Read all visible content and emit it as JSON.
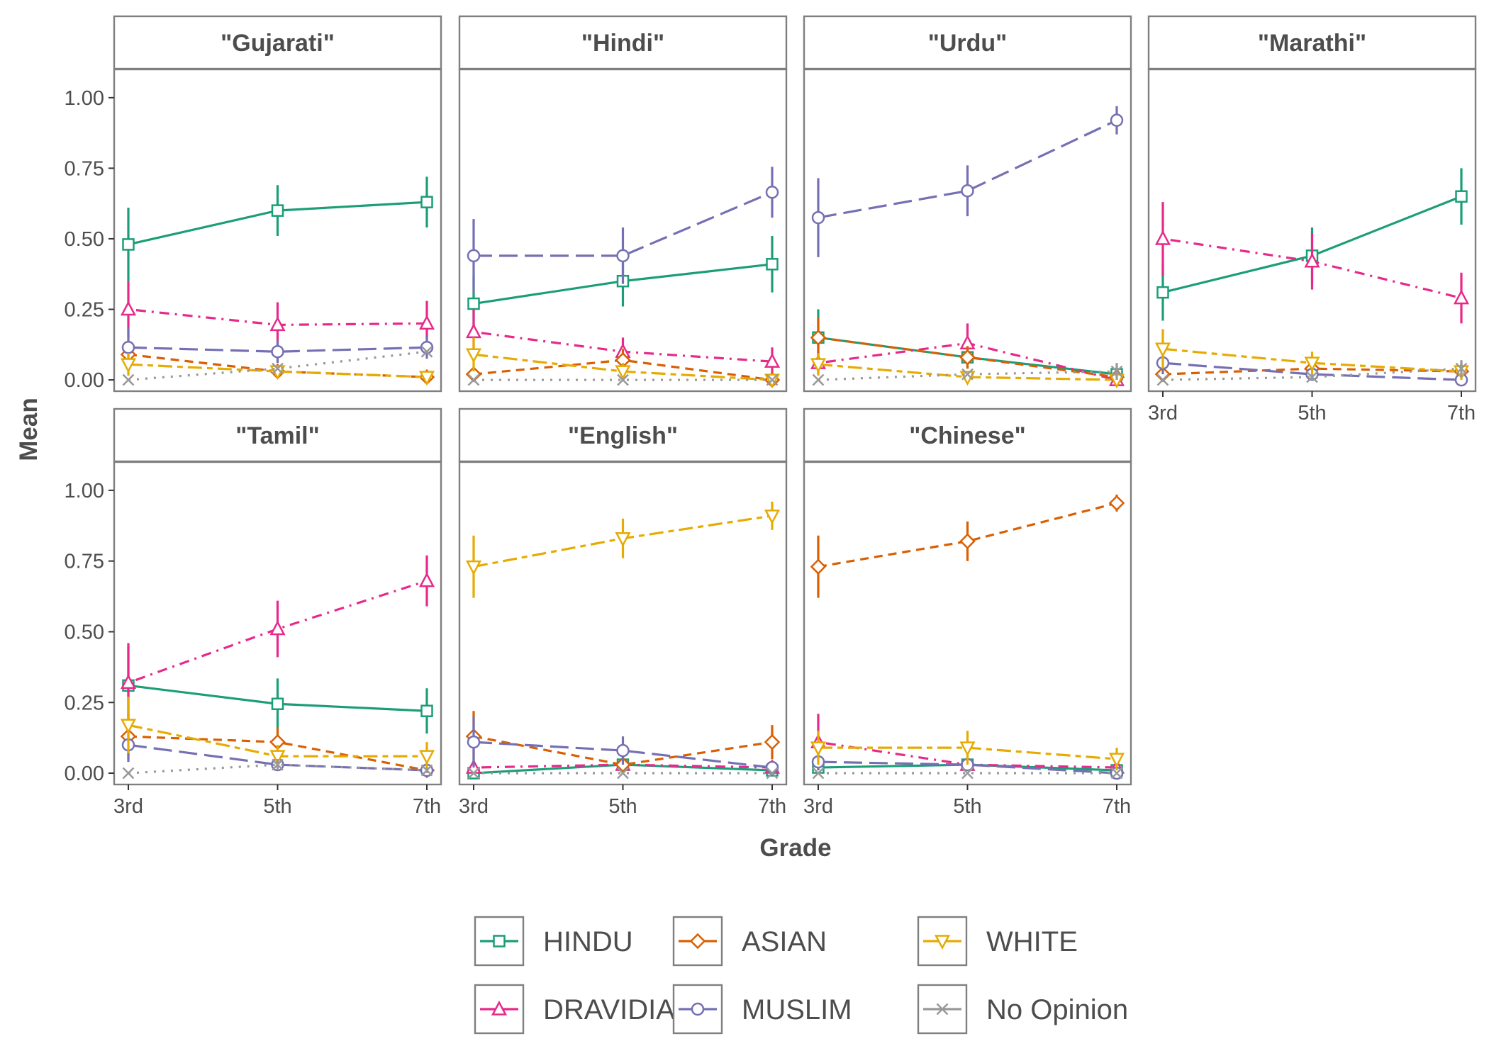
{
  "chart_data": {
    "type": "line",
    "xlabel": "Grade",
    "ylabel": "Mean",
    "x": [
      "3rd",
      "5th",
      "7th"
    ],
    "y_ticks": [
      "0.00",
      "0.25",
      "0.50",
      "0.75",
      "1.00"
    ],
    "ylim": [
      -0.04,
      1.1
    ],
    "grid": false,
    "legend_position": "bottom",
    "series_order": [
      "HINDU",
      "DRAVIDIAN",
      "ASIAN",
      "MUSLIM",
      "WHITE",
      "No Opinion"
    ],
    "series_styles": {
      "HINDU": {
        "color": "#1B9E77",
        "marker": "square",
        "dash": "solid"
      },
      "DRAVIDIAN": {
        "color": "#E7298A",
        "marker": "triangle-up",
        "dash": "dotdash"
      },
      "ASIAN": {
        "color": "#D95F02",
        "marker": "diamond",
        "dash": "dashed"
      },
      "MUSLIM": {
        "color": "#7570B3",
        "marker": "circle",
        "dash": "longdash"
      },
      "WHITE": {
        "color": "#E6AB02",
        "marker": "triangle-down",
        "dash": "twodash"
      },
      "No Opinion": {
        "color": "#999999",
        "marker": "x",
        "dash": "dotted"
      }
    },
    "panels": [
      {
        "title": "\"Gujarati\"",
        "series": [
          {
            "name": "HINDU",
            "values": [
              0.48,
              0.6,
              0.63
            ],
            "err": [
              0.13,
              0.09,
              0.09
            ]
          },
          {
            "name": "DRAVIDIAN",
            "values": [
              0.25,
              0.195,
              0.2
            ],
            "err": [
              0.1,
              0.08,
              0.08
            ]
          },
          {
            "name": "ASIAN",
            "values": [
              0.09,
              0.03,
              0.01
            ],
            "err": [
              0.05,
              0.02,
              0.01
            ]
          },
          {
            "name": "MUSLIM",
            "values": [
              0.115,
              0.1,
              0.115
            ],
            "err": [
              0.07,
              0.04,
              0.04
            ]
          },
          {
            "name": "WHITE",
            "values": [
              0.055,
              0.03,
              0.01
            ],
            "err": [
              0.04,
              0.02,
              0.01
            ]
          },
          {
            "name": "No Opinion",
            "values": [
              0.0,
              0.04,
              0.1
            ],
            "err": [
              0.0,
              0.0,
              0.0
            ]
          }
        ]
      },
      {
        "title": "\"Hindi\"",
        "series": [
          {
            "name": "HINDU",
            "values": [
              0.27,
              0.35,
              0.41
            ],
            "err": [
              0.1,
              0.09,
              0.1
            ]
          },
          {
            "name": "DRAVIDIAN",
            "values": [
              0.17,
              0.1,
              0.065
            ],
            "err": [
              0.08,
              0.05,
              0.05
            ]
          },
          {
            "name": "ASIAN",
            "values": [
              0.02,
              0.07,
              0.0
            ],
            "err": [
              0.02,
              0.04,
              0.0
            ]
          },
          {
            "name": "MUSLIM",
            "values": [
              0.44,
              0.44,
              0.665
            ],
            "err": [
              0.13,
              0.1,
              0.09
            ]
          },
          {
            "name": "WHITE",
            "values": [
              0.09,
              0.03,
              0.0
            ],
            "err": [
              0.06,
              0.03,
              0.0
            ]
          },
          {
            "name": "No Opinion",
            "values": [
              0.0,
              0.0,
              0.0
            ],
            "err": [
              0.0,
              0.0,
              0.0
            ]
          }
        ]
      },
      {
        "title": "\"Urdu\"",
        "series": [
          {
            "name": "HINDU",
            "values": [
              0.15,
              0.08,
              0.02
            ],
            "err": [
              0.1,
              0.04,
              0.02
            ]
          },
          {
            "name": "DRAVIDIAN",
            "values": [
              0.06,
              0.13,
              0.0
            ],
            "err": [
              0.04,
              0.07,
              0.0
            ]
          },
          {
            "name": "ASIAN",
            "values": [
              0.15,
              0.08,
              0.01
            ],
            "err": [
              0.07,
              0.04,
              0.01
            ]
          },
          {
            "name": "MUSLIM",
            "values": [
              0.575,
              0.67,
              0.92
            ],
            "err": [
              0.14,
              0.09,
              0.05
            ]
          },
          {
            "name": "WHITE",
            "values": [
              0.055,
              0.01,
              0.0
            ],
            "err": [
              0.04,
              0.01,
              0.0
            ]
          },
          {
            "name": "No Opinion",
            "values": [
              0.0,
              0.02,
              0.03
            ],
            "err": [
              0.0,
              0.0,
              0.03
            ]
          }
        ]
      },
      {
        "title": "\"Marathi\"",
        "series": [
          {
            "name": "HINDU",
            "values": [
              0.31,
              0.44,
              0.65
            ],
            "err": [
              0.1,
              0.1,
              0.1
            ]
          },
          {
            "name": "DRAVIDIAN",
            "values": [
              0.5,
              0.42,
              0.29
            ],
            "err": [
              0.13,
              0.1,
              0.09
            ]
          },
          {
            "name": "ASIAN",
            "values": [
              0.02,
              0.04,
              0.03
            ],
            "err": [
              0.02,
              0.03,
              0.02
            ]
          },
          {
            "name": "MUSLIM",
            "values": [
              0.06,
              0.02,
              0.0
            ],
            "err": [
              0.04,
              0.02,
              0.0
            ]
          },
          {
            "name": "WHITE",
            "values": [
              0.11,
              0.06,
              0.03
            ],
            "err": [
              0.07,
              0.04,
              0.03
            ]
          },
          {
            "name": "No Opinion",
            "values": [
              0.0,
              0.01,
              0.04
            ],
            "err": [
              0.0,
              0.01,
              0.03
            ]
          }
        ]
      },
      {
        "title": "\"Tamil\"",
        "series": [
          {
            "name": "HINDU",
            "values": [
              0.31,
              0.245,
              0.22
            ],
            "err": [
              0.14,
              0.09,
              0.08
            ]
          },
          {
            "name": "DRAVIDIAN",
            "values": [
              0.32,
              0.51,
              0.68
            ],
            "err": [
              0.14,
              0.1,
              0.09
            ]
          },
          {
            "name": "ASIAN",
            "values": [
              0.13,
              0.11,
              0.01
            ],
            "err": [
              0.08,
              0.05,
              0.01
            ]
          },
          {
            "name": "MUSLIM",
            "values": [
              0.1,
              0.03,
              0.01
            ],
            "err": [
              0.06,
              0.02,
              0.01
            ]
          },
          {
            "name": "WHITE",
            "values": [
              0.17,
              0.06,
              0.06
            ],
            "err": [
              0.1,
              0.04,
              0.05
            ]
          },
          {
            "name": "No Opinion",
            "values": [
              0.0,
              0.03,
              0.01
            ],
            "err": [
              0.0,
              0.02,
              0.01
            ]
          }
        ]
      },
      {
        "title": "\"English\"",
        "series": [
          {
            "name": "HINDU",
            "values": [
              0.0,
              0.03,
              0.01
            ],
            "err": [
              0.0,
              0.02,
              0.01
            ]
          },
          {
            "name": "DRAVIDIAN",
            "values": [
              0.02,
              0.03,
              0.02
            ],
            "err": [
              0.02,
              0.02,
              0.02
            ]
          },
          {
            "name": "ASIAN",
            "values": [
              0.13,
              0.03,
              0.11
            ],
            "err": [
              0.09,
              0.02,
              0.06
            ]
          },
          {
            "name": "MUSLIM",
            "values": [
              0.11,
              0.08,
              0.02
            ],
            "err": [
              0.09,
              0.05,
              0.02
            ]
          },
          {
            "name": "WHITE",
            "values": [
              0.73,
              0.83,
              0.91
            ],
            "err": [
              0.11,
              0.07,
              0.05
            ]
          },
          {
            "name": "No Opinion",
            "values": [
              0.0,
              0.0,
              0.0
            ],
            "err": [
              0.0,
              0.0,
              0.0
            ]
          }
        ]
      },
      {
        "title": "\"Chinese\"",
        "series": [
          {
            "name": "HINDU",
            "values": [
              0.02,
              0.03,
              0.01
            ],
            "err": [
              0.02,
              0.02,
              0.01
            ]
          },
          {
            "name": "DRAVIDIAN",
            "values": [
              0.11,
              0.03,
              0.02
            ],
            "err": [
              0.1,
              0.02,
              0.02
            ]
          },
          {
            "name": "ASIAN",
            "values": [
              0.73,
              0.82,
              0.955
            ],
            "err": [
              0.11,
              0.07,
              0.03
            ]
          },
          {
            "name": "MUSLIM",
            "values": [
              0.04,
              0.03,
              0.0
            ],
            "err": [
              0.03,
              0.02,
              0.0
            ]
          },
          {
            "name": "WHITE",
            "values": [
              0.09,
              0.09,
              0.05
            ],
            "err": [
              0.06,
              0.06,
              0.04
            ]
          },
          {
            "name": "No Opinion",
            "values": [
              0.0,
              0.0,
              0.0
            ],
            "err": [
              0.0,
              0.0,
              0.0
            ]
          }
        ]
      }
    ]
  }
}
